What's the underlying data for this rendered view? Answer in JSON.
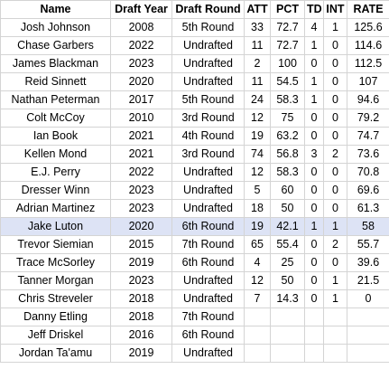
{
  "headers": [
    "Name",
    "Draft Year",
    "Draft Round",
    "ATT",
    "PCT",
    "TD",
    "INT",
    "RATE"
  ],
  "rows": [
    [
      "Josh Johnson",
      "2008",
      "5th Round",
      "33",
      "72.7",
      "4",
      "1",
      "125.6"
    ],
    [
      "Chase Garbers",
      "2022",
      "Undrafted",
      "11",
      "72.7",
      "1",
      "0",
      "114.6"
    ],
    [
      "James Blackman",
      "2023",
      "Undrafted",
      "2",
      "100",
      "0",
      "0",
      "112.5"
    ],
    [
      "Reid Sinnett",
      "2020",
      "Undrafted",
      "11",
      "54.5",
      "1",
      "0",
      "107"
    ],
    [
      "Nathan Peterman",
      "2017",
      "5th Round",
      "24",
      "58.3",
      "1",
      "0",
      "94.6"
    ],
    [
      "Colt McCoy",
      "2010",
      "3rd Round",
      "12",
      "75",
      "0",
      "0",
      "79.2"
    ],
    [
      "Ian Book",
      "2021",
      "4th Round",
      "19",
      "63.2",
      "0",
      "0",
      "74.7"
    ],
    [
      "Kellen Mond",
      "2021",
      "3rd Round",
      "74",
      "56.8",
      "3",
      "2",
      "73.6"
    ],
    [
      "E.J. Perry",
      "2022",
      "Undrafted",
      "12",
      "58.3",
      "0",
      "0",
      "70.8"
    ],
    [
      "Dresser Winn",
      "2023",
      "Undrafted",
      "5",
      "60",
      "0",
      "0",
      "69.6"
    ],
    [
      "Adrian Martinez",
      "2023",
      "Undrafted",
      "18",
      "50",
      "0",
      "0",
      "61.3"
    ],
    [
      "Jake Luton",
      "2020",
      "6th Round",
      "19",
      "42.1",
      "1",
      "1",
      "58"
    ],
    [
      "Trevor Siemian",
      "2015",
      "7th Round",
      "65",
      "55.4",
      "0",
      "2",
      "55.7"
    ],
    [
      "Trace McSorley",
      "2019",
      "6th Round",
      "4",
      "25",
      "0",
      "0",
      "39.6"
    ],
    [
      "Tanner Morgan",
      "2023",
      "Undrafted",
      "12",
      "50",
      "0",
      "1",
      "21.5"
    ],
    [
      "Chris Streveler",
      "2018",
      "Undrafted",
      "7",
      "14.3",
      "0",
      "1",
      "0"
    ],
    [
      "Danny Etling",
      "2018",
      "7th Round",
      "",
      "",
      "",
      "",
      ""
    ],
    [
      "Jeff Driskel",
      "2016",
      "6th Round",
      "",
      "",
      "",
      "",
      ""
    ],
    [
      "Jordan Ta'amu",
      "2019",
      "Undrafted",
      "",
      "",
      "",
      "",
      ""
    ]
  ],
  "highlighted_row": 11,
  "highlight_color": "#dde3f5"
}
